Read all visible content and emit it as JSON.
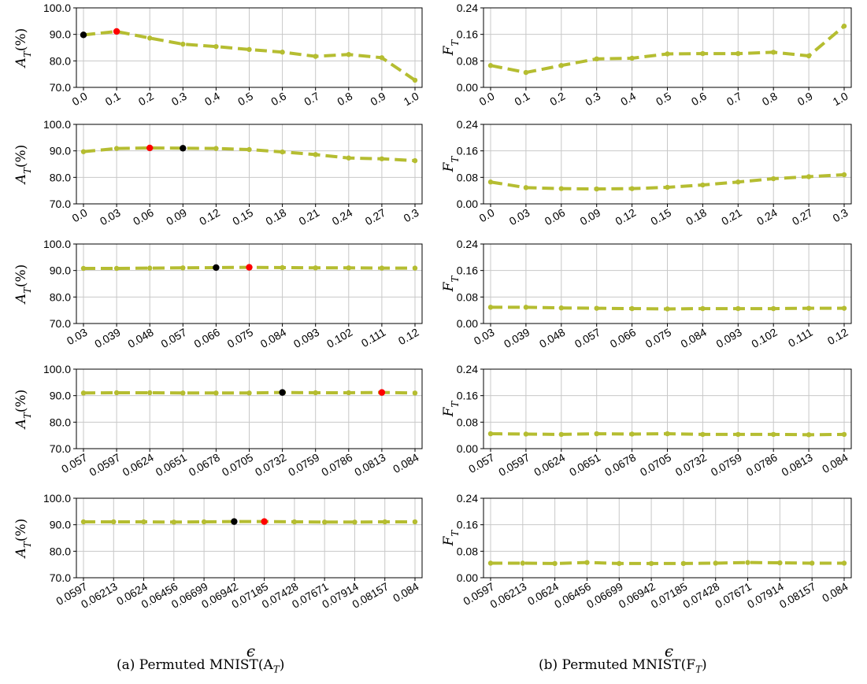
{
  "chart_data": [
    {
      "type": "line",
      "panel": "a",
      "ylabel": "A_T(%)",
      "yticks": [
        "70.0",
        "80.0",
        "90.0",
        "100.0"
      ],
      "ylim": [
        70,
        100
      ],
      "grid": true,
      "categories": [
        "0.0",
        "0.1",
        "0.2",
        "0.3",
        "0.4",
        "0.5",
        "0.6",
        "0.7",
        "0.8",
        "0.9",
        "1.0"
      ],
      "values": [
        89.8,
        91.1,
        88.6,
        86.3,
        85.4,
        84.3,
        83.3,
        81.7,
        82.4,
        81.2,
        72.7
      ],
      "black_marker_index": 0,
      "red_marker_index": 1,
      "xlabel": "",
      "line_color": "#b5bd31"
    },
    {
      "type": "line",
      "panel": "b",
      "ylabel": "F_T",
      "yticks": [
        "0.00",
        "0.08",
        "0.16",
        "0.24"
      ],
      "ylim": [
        0,
        0.24
      ],
      "grid": true,
      "categories": [
        "0.0",
        "0.1",
        "0.2",
        "0.3",
        "0.4",
        "0.5",
        "0.6",
        "0.7",
        "0.8",
        "0.9",
        "1.0"
      ],
      "values": [
        0.066,
        0.045,
        0.066,
        0.086,
        0.088,
        0.101,
        0.102,
        0.102,
        0.106,
        0.095,
        0.185
      ],
      "xlabel": "",
      "line_color": "#b5bd31"
    },
    {
      "type": "line",
      "panel": "a",
      "ylabel": "A_T(%)",
      "yticks": [
        "70.0",
        "80.0",
        "90.0",
        "100.0"
      ],
      "ylim": [
        70,
        100
      ],
      "grid": true,
      "categories": [
        "0.0",
        "0.03",
        "0.06",
        "0.09",
        "0.12",
        "0.15",
        "0.18",
        "0.21",
        "0.24",
        "0.27",
        "0.3"
      ],
      "values": [
        89.7,
        90.9,
        91.1,
        91.0,
        90.9,
        90.5,
        89.6,
        88.6,
        87.3,
        87.0,
        86.3
      ],
      "black_marker_index": 3,
      "red_marker_index": 2,
      "xlabel": "",
      "line_color": "#b5bd31"
    },
    {
      "type": "line",
      "panel": "b",
      "ylabel": "F_T",
      "yticks": [
        "0.00",
        "0.08",
        "0.16",
        "0.24"
      ],
      "ylim": [
        0,
        0.24
      ],
      "grid": true,
      "categories": [
        "0.0",
        "0.03",
        "0.06",
        "0.09",
        "0.12",
        "0.15",
        "0.18",
        "0.21",
        "0.24",
        "0.27",
        "0.3"
      ],
      "values": [
        0.066,
        0.049,
        0.046,
        0.045,
        0.046,
        0.05,
        0.057,
        0.066,
        0.076,
        0.082,
        0.088
      ],
      "xlabel": "",
      "line_color": "#b5bd31"
    },
    {
      "type": "line",
      "panel": "a",
      "ylabel": "A_T(%)",
      "yticks": [
        "70.0",
        "80.0",
        "90.0",
        "100.0"
      ],
      "ylim": [
        70,
        100
      ],
      "grid": true,
      "categories": [
        "0.03",
        "0.039",
        "0.048",
        "0.057",
        "0.066",
        "0.075",
        "0.084",
        "0.093",
        "0.102",
        "0.111",
        "0.12"
      ],
      "values": [
        90.8,
        90.8,
        90.9,
        91.0,
        91.1,
        91.2,
        91.1,
        91.0,
        91.0,
        90.9,
        90.9
      ],
      "black_marker_index": 4,
      "red_marker_index": 5,
      "xlabel": "",
      "line_color": "#b5bd31"
    },
    {
      "type": "line",
      "panel": "b",
      "ylabel": "F_T",
      "yticks": [
        "0.00",
        "0.08",
        "0.16",
        "0.24"
      ],
      "ylim": [
        0,
        0.24
      ],
      "grid": true,
      "categories": [
        "0.03",
        "0.039",
        "0.048",
        "0.057",
        "0.066",
        "0.075",
        "0.084",
        "0.093",
        "0.102",
        "0.111",
        "0.12"
      ],
      "values": [
        0.049,
        0.049,
        0.047,
        0.046,
        0.045,
        0.044,
        0.045,
        0.045,
        0.045,
        0.046,
        0.046
      ],
      "xlabel": "",
      "line_color": "#b5bd31"
    },
    {
      "type": "line",
      "panel": "a",
      "ylabel": "A_T(%)",
      "yticks": [
        "70.0",
        "80.0",
        "90.0",
        "100.0"
      ],
      "ylim": [
        70,
        100
      ],
      "grid": true,
      "categories": [
        "0.057",
        "0.0597",
        "0.0624",
        "0.0651",
        "0.0678",
        "0.0705",
        "0.0732",
        "0.0759",
        "0.0786",
        "0.0813",
        "0.084"
      ],
      "values": [
        91.0,
        91.1,
        91.1,
        91.0,
        91.0,
        91.0,
        91.2,
        91.1,
        91.1,
        91.2,
        91.0
      ],
      "black_marker_index": 6,
      "red_marker_index": 9,
      "xlabel": "",
      "line_color": "#b5bd31"
    },
    {
      "type": "line",
      "panel": "b",
      "ylabel": "F_T",
      "yticks": [
        "0.00",
        "0.08",
        "0.16",
        "0.24"
      ],
      "ylim": [
        0,
        0.24
      ],
      "grid": true,
      "categories": [
        "0.057",
        "0.0597",
        "0.0624",
        "0.0651",
        "0.0678",
        "0.0705",
        "0.0732",
        "0.0759",
        "0.0786",
        "0.0813",
        "0.084"
      ],
      "values": [
        0.045,
        0.044,
        0.043,
        0.045,
        0.044,
        0.045,
        0.043,
        0.043,
        0.043,
        0.042,
        0.043
      ],
      "xlabel": "",
      "line_color": "#b5bd31"
    },
    {
      "type": "line",
      "panel": "a",
      "ylabel": "A_T(%)",
      "yticks": [
        "70.0",
        "80.0",
        "90.0",
        "100.0"
      ],
      "ylim": [
        70,
        100
      ],
      "grid": true,
      "categories": [
        "0.0597",
        "0.06213",
        "0.0624",
        "0.06456",
        "0.06699",
        "0.06942",
        "0.07185",
        "0.07428",
        "0.07671",
        "0.07914",
        "0.08157",
        "0.084"
      ],
      "values": [
        91.1,
        91.1,
        91.1,
        91.0,
        91.1,
        91.2,
        91.2,
        91.1,
        91.0,
        91.0,
        91.1,
        91.1
      ],
      "black_marker_index": 5,
      "red_marker_index": 6,
      "xlabel": "ϵ",
      "line_color": "#b5bd31"
    },
    {
      "type": "line",
      "panel": "b",
      "ylabel": "F_T",
      "yticks": [
        "0.00",
        "0.08",
        "0.16",
        "0.24"
      ],
      "ylim": [
        0,
        0.24
      ],
      "grid": true,
      "categories": [
        "0.0597",
        "0.06213",
        "0.0624",
        "0.06456",
        "0.06699",
        "0.06942",
        "0.07185",
        "0.07428",
        "0.07671",
        "0.07914",
        "0.08157",
        "0.084"
      ],
      "values": [
        0.044,
        0.044,
        0.043,
        0.046,
        0.043,
        0.043,
        0.043,
        0.044,
        0.046,
        0.045,
        0.044,
        0.044
      ],
      "xlabel": "ϵ",
      "line_color": "#b5bd31"
    }
  ],
  "captions": {
    "a": "(a) Permuted MNIST(A_T)",
    "b": "(b) Permuted MNIST(F_T)"
  },
  "colors": {
    "line": "#b5bd31",
    "grid": "#c8c8c8",
    "axis": "#000000",
    "black_marker": "#000000",
    "red_marker": "#ff0000"
  }
}
